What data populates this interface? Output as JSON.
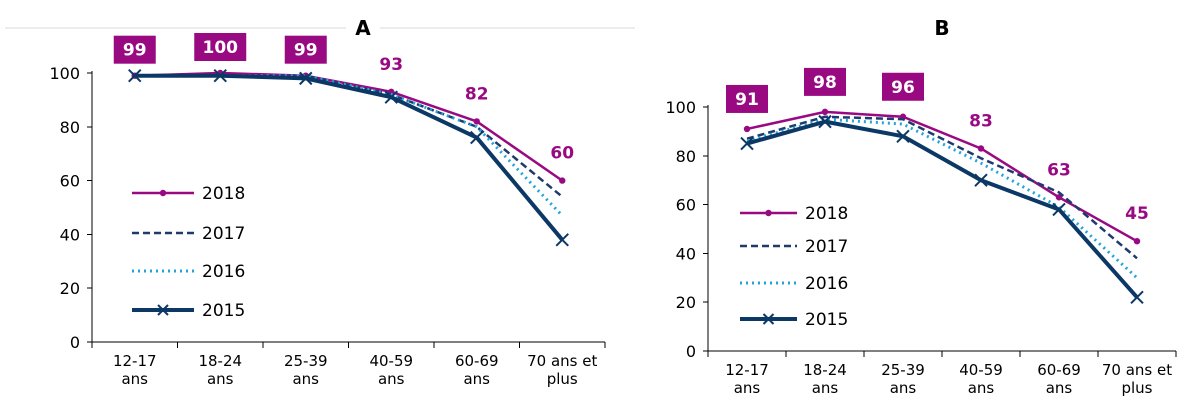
{
  "chart_data": [
    {
      "type": "line",
      "title": "A",
      "categories": [
        "12-17 ans",
        "18-24 ans",
        "25-39 ans",
        "40-59 ans",
        "60-69 ans",
        "70 ans et plus"
      ],
      "ylim": [
        0,
        100
      ],
      "yticks": [
        0,
        20,
        40,
        60,
        80,
        100
      ],
      "legend_position": "left",
      "series": [
        {
          "name": "2018",
          "values": [
            99,
            100,
            99,
            93,
            82,
            60
          ]
        },
        {
          "name": "2017",
          "values": [
            99,
            99,
            99,
            92,
            80,
            54
          ]
        },
        {
          "name": "2016",
          "values": [
            99,
            99,
            99,
            92,
            80,
            47
          ]
        },
        {
          "name": "2015",
          "values": [
            99,
            99,
            98,
            91,
            76,
            38
          ]
        }
      ],
      "data_labels": [
        "99",
        "100",
        "99",
        "93",
        "82",
        "60"
      ]
    },
    {
      "type": "line",
      "title": "B",
      "categories": [
        "12-17 ans",
        "18-24 ans",
        "25-39 ans",
        "40-59 ans",
        "60-69 ans",
        "70 ans et plus"
      ],
      "ylim": [
        0,
        100
      ],
      "yticks": [
        0,
        20,
        40,
        60,
        80,
        100
      ],
      "legend_position": "left",
      "series": [
        {
          "name": "2018",
          "values": [
            91,
            98,
            96,
            83,
            63,
            45
          ]
        },
        {
          "name": "2017",
          "values": [
            87,
            96,
            95,
            79,
            65,
            38
          ]
        },
        {
          "name": "2016",
          "values": [
            86,
            95,
            93,
            77,
            59,
            30
          ]
        },
        {
          "name": "2015",
          "values": [
            85,
            94,
            88,
            70,
            58,
            22
          ]
        }
      ],
      "data_labels": [
        "91",
        "98",
        "96",
        "83",
        "63",
        "45"
      ]
    }
  ],
  "colors": {
    "2018": "#990a82",
    "2017": "#1f3b6e",
    "2016": "#22a4dc",
    "2015": "#0c3866",
    "label_box": "#990a82"
  }
}
